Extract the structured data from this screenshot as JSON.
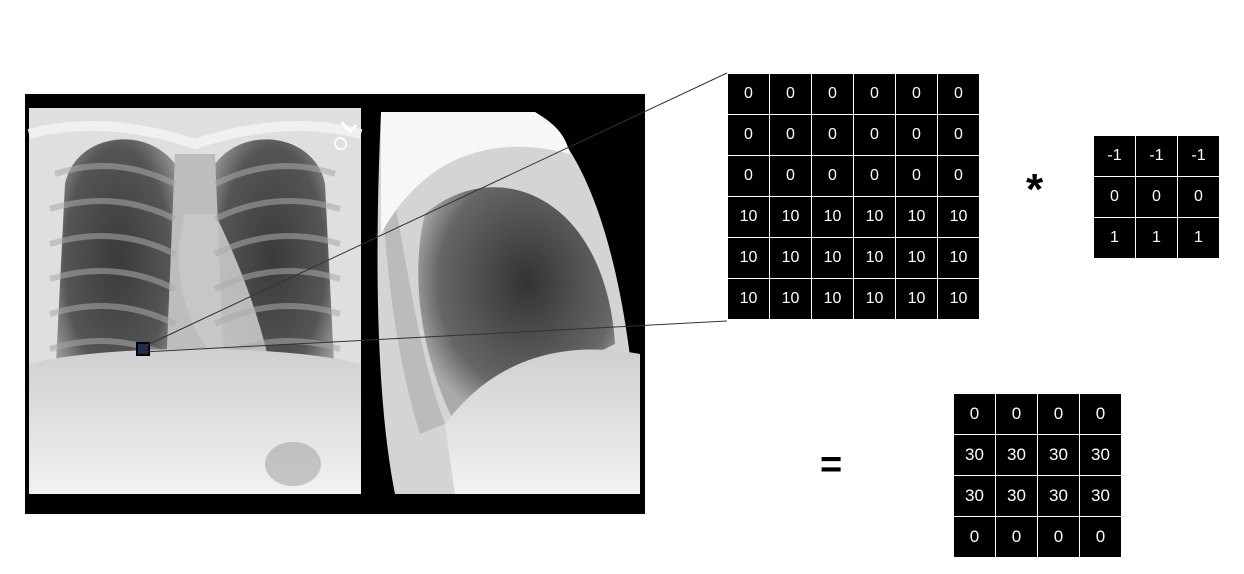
{
  "figure": {
    "image": {
      "description_icon": "chest-xray-icon",
      "views": [
        "frontal",
        "lateral"
      ],
      "marker_text": "L"
    },
    "operators": {
      "convolve": "*",
      "equals": "="
    },
    "input_matrix": [
      [
        0,
        0,
        0,
        0,
        0,
        0
      ],
      [
        0,
        0,
        0,
        0,
        0,
        0
      ],
      [
        0,
        0,
        0,
        0,
        0,
        0
      ],
      [
        10,
        10,
        10,
        10,
        10,
        10
      ],
      [
        10,
        10,
        10,
        10,
        10,
        10
      ],
      [
        10,
        10,
        10,
        10,
        10,
        10
      ]
    ],
    "kernel_matrix": [
      [
        -1,
        -1,
        -1
      ],
      [
        0,
        0,
        0
      ],
      [
        1,
        1,
        1
      ]
    ],
    "output_matrix": [
      [
        0,
        0,
        0,
        0
      ],
      [
        30,
        30,
        30,
        30
      ],
      [
        30,
        30,
        30,
        30
      ],
      [
        0,
        0,
        0,
        0
      ]
    ],
    "colors": {
      "cell_bg": "#000000",
      "cell_text": "#ffffff",
      "grid_line": "#ffffff",
      "highlight_box": "#1f2a55"
    }
  }
}
